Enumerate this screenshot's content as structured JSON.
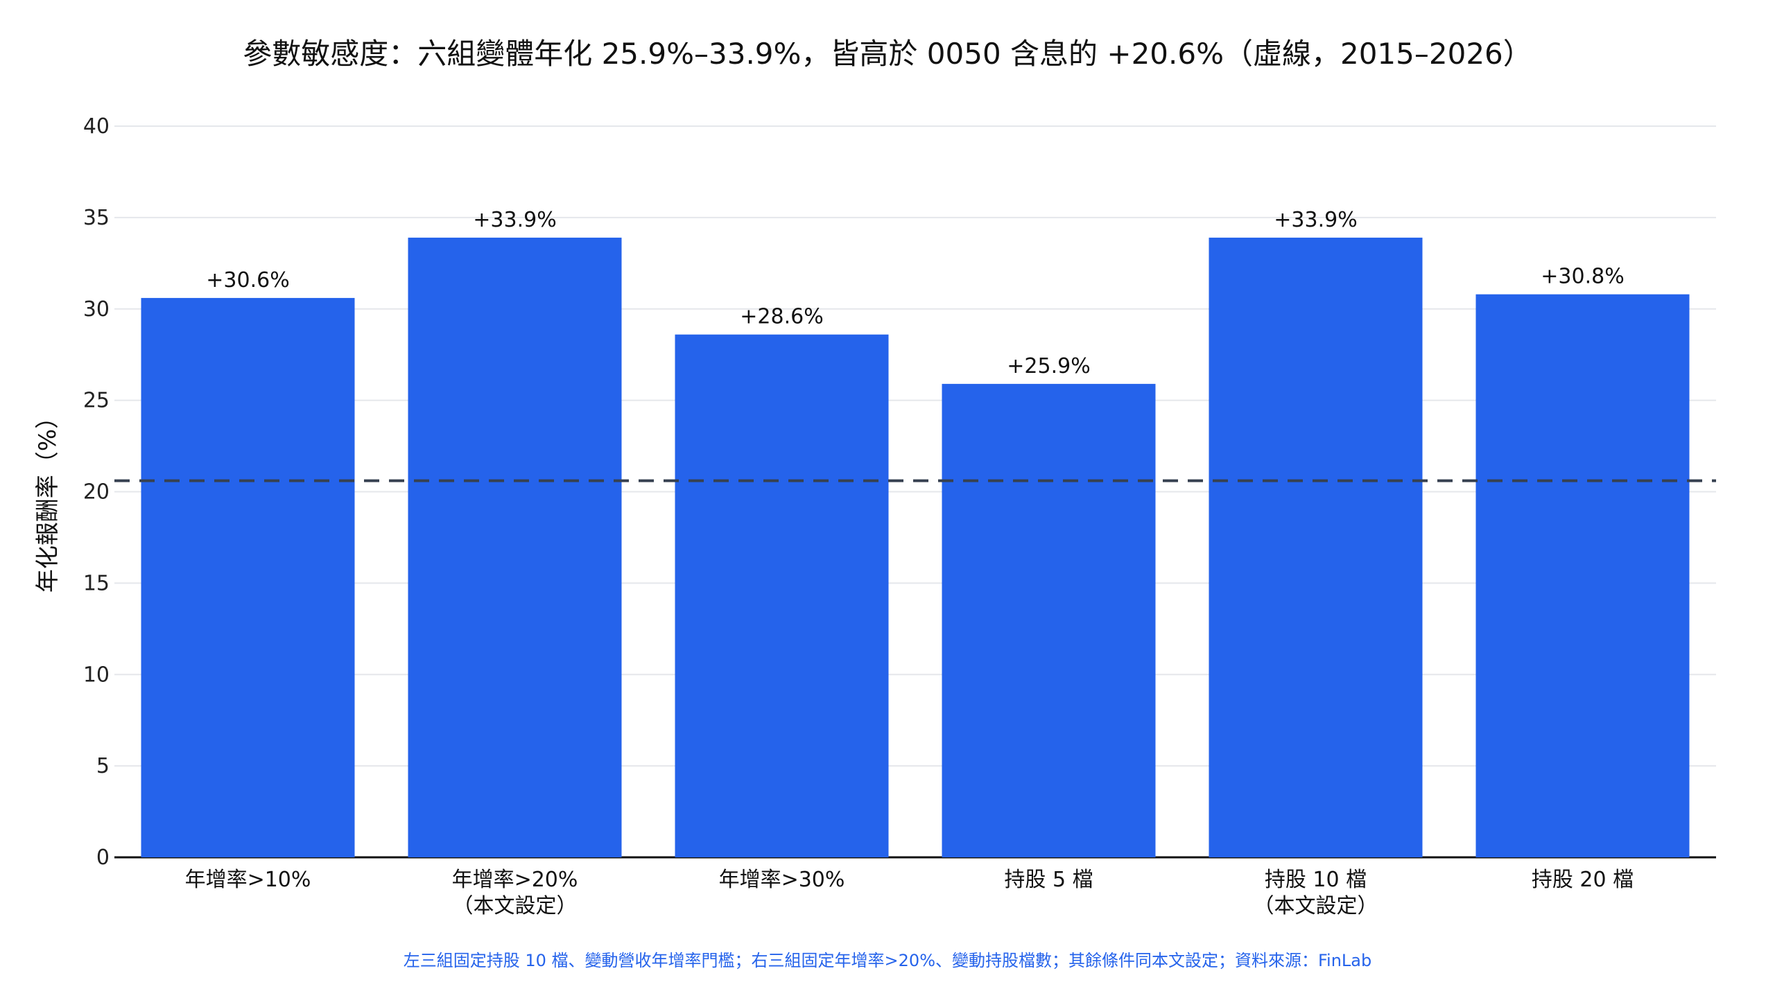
{
  "chart_data": {
    "type": "bar",
    "title": "參數敏感度：六組變體年化 25.9%–33.9%，皆高於 0050 含息的 +20.6%（虛線，2015–2026）",
    "footnote": "左三組固定持股 10 檔、變動營收年增率門檻；右三組固定年增率>20%、變動持股檔數；其餘條件同本文設定；資料來源：FinLab",
    "xlabel": "",
    "ylabel": "年化報酬率（%）",
    "ylim": [
      0,
      40
    ],
    "yticks": [
      0,
      5,
      10,
      15,
      20,
      25,
      30,
      35,
      40
    ],
    "grid": true,
    "categories": [
      [
        "年增率>10%"
      ],
      [
        "年增率>20%",
        "（本文設定）"
      ],
      [
        "年增率>30%"
      ],
      [
        "持股 5 檔"
      ],
      [
        "持股 10 檔",
        "（本文設定）"
      ],
      [
        "持股 20 檔"
      ]
    ],
    "values": [
      30.6,
      33.9,
      28.6,
      25.9,
      33.9,
      30.8
    ],
    "data_labels": [
      "+30.6%",
      "+33.9%",
      "+28.6%",
      "+25.9%",
      "+33.9%",
      "+30.8%"
    ],
    "reference_line": {
      "value": 20.6,
      "style": "dashed"
    },
    "bar_color": "#2563eb",
    "reference_color": "#374151"
  }
}
